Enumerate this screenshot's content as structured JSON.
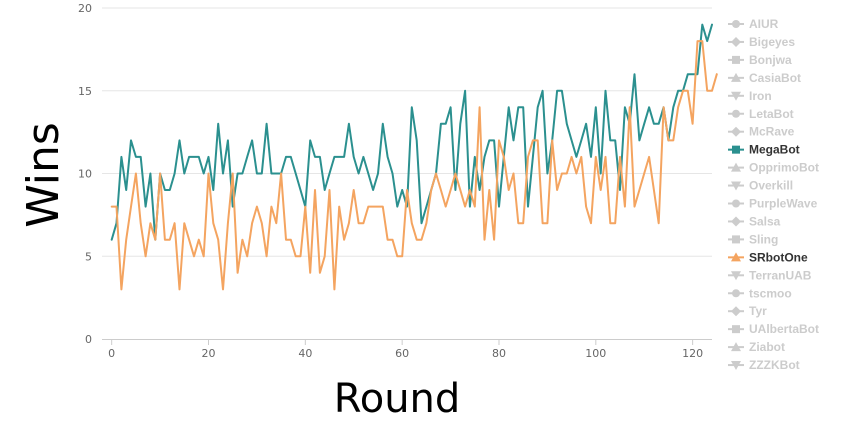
{
  "chart_data": {
    "type": "line",
    "xlabel": "Round",
    "ylabel": "Wins",
    "xlim": [
      -2,
      124
    ],
    "ylim": [
      0,
      20
    ],
    "xticks": [
      0,
      20,
      40,
      60,
      80,
      100,
      120
    ],
    "yticks": [
      0,
      5,
      10,
      15,
      20
    ],
    "grid": "horizontal",
    "legend_position": "right",
    "legend": [
      {
        "name": "AIUR",
        "marker": "circle",
        "active": false
      },
      {
        "name": "Bigeyes",
        "marker": "diamond",
        "active": false
      },
      {
        "name": "Bonjwa",
        "marker": "square",
        "active": false
      },
      {
        "name": "CasiaBot",
        "marker": "triangle",
        "active": false
      },
      {
        "name": "Iron",
        "marker": "triangle-down",
        "active": false
      },
      {
        "name": "LetaBot",
        "marker": "circle",
        "active": false
      },
      {
        "name": "McRave",
        "marker": "diamond",
        "active": false
      },
      {
        "name": "MegaBot",
        "marker": "square",
        "active": true,
        "color": "#2b908f"
      },
      {
        "name": "OpprimoBot",
        "marker": "triangle",
        "active": false
      },
      {
        "name": "Overkill",
        "marker": "triangle-down",
        "active": false
      },
      {
        "name": "PurpleWave",
        "marker": "circle",
        "active": false
      },
      {
        "name": "Salsa",
        "marker": "diamond",
        "active": false
      },
      {
        "name": "Sling",
        "marker": "square",
        "active": false
      },
      {
        "name": "SRbotOne",
        "marker": "triangle",
        "active": true,
        "color": "#f4a460"
      },
      {
        "name": "TerranUAB",
        "marker": "triangle-down",
        "active": false
      },
      {
        "name": "tscmoo",
        "marker": "circle",
        "active": false
      },
      {
        "name": "Tyr",
        "marker": "diamond",
        "active": false
      },
      {
        "name": "UAlbertaBot",
        "marker": "square",
        "active": false
      },
      {
        "name": "Ziabot",
        "marker": "triangle",
        "active": false
      },
      {
        "name": "ZZZKBot",
        "marker": "triangle-down",
        "active": false
      }
    ],
    "inactive_color": "#cccccc",
    "series": [
      {
        "name": "MegaBot",
        "color": "#2b908f",
        "values": [
          6,
          7,
          11,
          9,
          12,
          11,
          11,
          8,
          10,
          6,
          10,
          9,
          9,
          10,
          12,
          10,
          11,
          11,
          11,
          10,
          11,
          9,
          13,
          10,
          12,
          8,
          10,
          10,
          11,
          12,
          10,
          10,
          13,
          10,
          10,
          10,
          11,
          11,
          10,
          9,
          8,
          12,
          11,
          11,
          9,
          10,
          11,
          11,
          11,
          13,
          11,
          10,
          11,
          10,
          9,
          10,
          13,
          11,
          10,
          8,
          9,
          8,
          14,
          12,
          7,
          8,
          9,
          10,
          13,
          13,
          14,
          9,
          13,
          15,
          8,
          11,
          9,
          11,
          12,
          12,
          8,
          11,
          14,
          12,
          14,
          14,
          8,
          11,
          14,
          15,
          10,
          12,
          15,
          15,
          13,
          12,
          11,
          12,
          13,
          11,
          14,
          10,
          15,
          12,
          12,
          9,
          14,
          13,
          16,
          12,
          13,
          14,
          13,
          13,
          14,
          12,
          14,
          15,
          15,
          16,
          16,
          16,
          19,
          18,
          19
        ]
      },
      {
        "name": "SRbotOne",
        "color": "#f4a460",
        "values": [
          8,
          8,
          3,
          6,
          8,
          10,
          7,
          5,
          7,
          6,
          10,
          6,
          6,
          7,
          3,
          7,
          6,
          5,
          6,
          5,
          10,
          7,
          6,
          3,
          7,
          10,
          4,
          6,
          5,
          7,
          8,
          7,
          5,
          8,
          7,
          10,
          6,
          6,
          5,
          5,
          8,
          4,
          9,
          4,
          5,
          9,
          3,
          8,
          6,
          7,
          9,
          7,
          7,
          8,
          8,
          8,
          8,
          6,
          6,
          5,
          5,
          9,
          7,
          6,
          6,
          7,
          9,
          10,
          9,
          8,
          9,
          10,
          9,
          8,
          9,
          8,
          14,
          6,
          9,
          6,
          12,
          11,
          9,
          10,
          7,
          7,
          11,
          12,
          12,
          7,
          7,
          12,
          9,
          10,
          10,
          11,
          10,
          11,
          8,
          7,
          11,
          9,
          11,
          7,
          7,
          11,
          8,
          14,
          8,
          9,
          10,
          11,
          9,
          7,
          14,
          12,
          12,
          14,
          15,
          15,
          13,
          18,
          18,
          15,
          15,
          16
        ]
      }
    ]
  }
}
